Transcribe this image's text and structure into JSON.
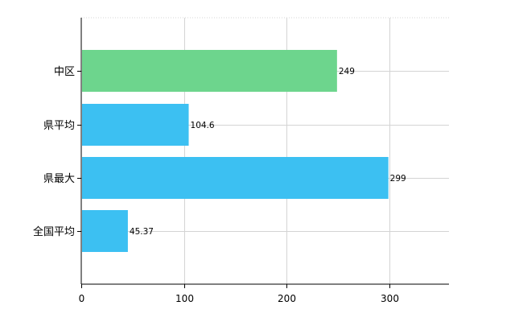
{
  "chart_data": {
    "type": "bar",
    "orientation": "horizontal",
    "title": "",
    "xlabel": "",
    "ylabel": "",
    "categories": [
      "中区",
      "県平均",
      "県最大",
      "全国平均"
    ],
    "values": [
      249,
      104.6,
      299,
      45.37
    ],
    "data_labels": [
      "249",
      "104.6",
      "299",
      "45.37"
    ],
    "colors": [
      "#6dd58d",
      "#3cc0f2",
      "#3cc0f2",
      "#3cc0f2"
    ],
    "xlim": [
      0,
      358
    ],
    "xticks": [
      0,
      100,
      200,
      300
    ],
    "xtick_labels": [
      "0",
      "100",
      "200",
      "300"
    ],
    "grid": true,
    "legend": "none"
  }
}
